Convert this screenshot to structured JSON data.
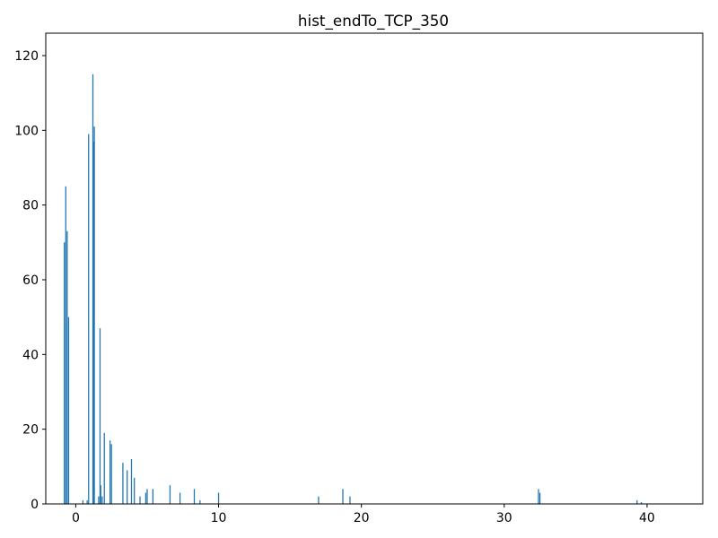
{
  "chart_data": {
    "type": "bar",
    "title": "hist_endTo_TCP_350",
    "xlabel": "",
    "ylabel": "",
    "xlim": [
      -2.1,
      43.9
    ],
    "ylim": [
      0,
      126
    ],
    "x_ticks": [
      0,
      10,
      20,
      30,
      40
    ],
    "y_ticks": [
      0,
      20,
      40,
      60,
      80,
      100,
      120
    ],
    "bar_color": "#1f77b4",
    "grid": false,
    "bar_width": 0.08,
    "bars": [
      {
        "x": -0.8,
        "value": 70
      },
      {
        "x": -0.7,
        "value": 85
      },
      {
        "x": -0.6,
        "value": 73
      },
      {
        "x": -0.5,
        "value": 50
      },
      {
        "x": 0.5,
        "value": 1
      },
      {
        "x": 0.8,
        "value": 1
      },
      {
        "x": 0.9,
        "value": 99
      },
      {
        "x": 1.2,
        "value": 115
      },
      {
        "x": 1.25,
        "value": 97
      },
      {
        "x": 1.3,
        "value": 101
      },
      {
        "x": 1.6,
        "value": 2
      },
      {
        "x": 1.7,
        "value": 47
      },
      {
        "x": 1.75,
        "value": 5
      },
      {
        "x": 1.85,
        "value": 2
      },
      {
        "x": 2.0,
        "value": 19
      },
      {
        "x": 2.4,
        "value": 17
      },
      {
        "x": 2.5,
        "value": 16
      },
      {
        "x": 3.3,
        "value": 11
      },
      {
        "x": 3.6,
        "value": 9
      },
      {
        "x": 3.9,
        "value": 12
      },
      {
        "x": 4.1,
        "value": 7
      },
      {
        "x": 4.5,
        "value": 2
      },
      {
        "x": 4.9,
        "value": 3
      },
      {
        "x": 5.0,
        "value": 4
      },
      {
        "x": 5.4,
        "value": 4
      },
      {
        "x": 6.6,
        "value": 5
      },
      {
        "x": 7.3,
        "value": 3
      },
      {
        "x": 8.3,
        "value": 4
      },
      {
        "x": 8.7,
        "value": 1
      },
      {
        "x": 10.0,
        "value": 3
      },
      {
        "x": 17.0,
        "value": 2
      },
      {
        "x": 18.7,
        "value": 4
      },
      {
        "x": 19.2,
        "value": 2
      },
      {
        "x": 32.4,
        "value": 4
      },
      {
        "x": 32.5,
        "value": 3
      },
      {
        "x": 39.3,
        "value": 1
      },
      {
        "x": 39.6,
        "value": 0.5
      }
    ]
  }
}
